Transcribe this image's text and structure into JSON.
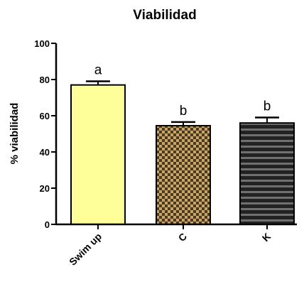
{
  "chart_data": {
    "type": "bar",
    "title": "Viabilidad",
    "xlabel": "",
    "ylabel": "% viabilidad",
    "ylim": [
      0,
      100
    ],
    "yticks": [
      0,
      20,
      40,
      60,
      80,
      100
    ],
    "grid": false,
    "categories": [
      "Swim up",
      "C",
      "K"
    ],
    "values": [
      77,
      54.5,
      56
    ],
    "errors": [
      2,
      2,
      3
    ],
    "annotations": [
      "a",
      "b",
      "b"
    ],
    "fill_styles": [
      "solid",
      "checkerboard",
      "horizontal-stripes"
    ],
    "colors": {
      "swim_up": "#ffff99",
      "checker_dark": "#4a3a1e",
      "checker_light": "#c8a46a",
      "stripe_dark": "#222222",
      "stripe_light": "#707070",
      "axis": "#000000"
    }
  }
}
